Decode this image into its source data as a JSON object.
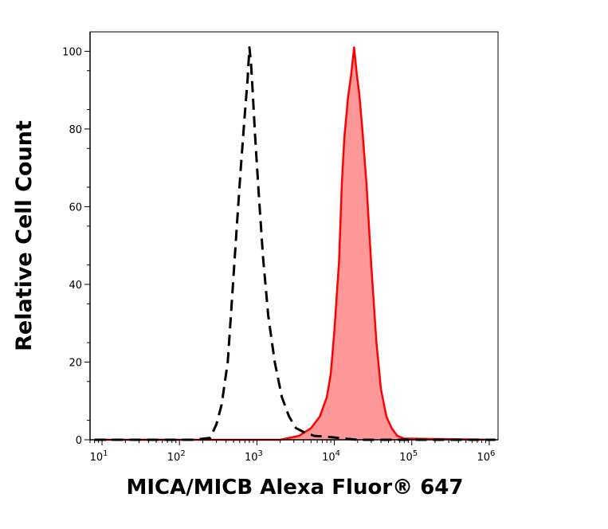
{
  "chart_data": {
    "type": "area",
    "xlabel": "MICA/MICB Alexa Fluor® 647",
    "ylabel": "Relative Cell Count",
    "x_scale": "log",
    "xlim": [
      7,
      1300000
    ],
    "ylim": [
      0,
      105
    ],
    "x_ticks": [
      {
        "base": "10",
        "exp": "1",
        "value": 10
      },
      {
        "base": "10",
        "exp": "2",
        "value": 100
      },
      {
        "base": "10",
        "exp": "3",
        "value": 1000
      },
      {
        "base": "10",
        "exp": "4",
        "value": 10000
      },
      {
        "base": "10",
        "exp": "5",
        "value": 100000
      },
      {
        "base": "10",
        "exp": "6",
        "value": 1000000
      }
    ],
    "y_ticks": [
      0,
      20,
      40,
      60,
      80,
      100
    ],
    "grid": false,
    "legend": "none",
    "series": [
      {
        "style": "dashed",
        "color": "#000000",
        "fill": "none",
        "points": [
          [
            8,
            0
          ],
          [
            150,
            0
          ],
          [
            250,
            0.5
          ],
          [
            300,
            4
          ],
          [
            350,
            9
          ],
          [
            420,
            20
          ],
          [
            480,
            37
          ],
          [
            550,
            55
          ],
          [
            620,
            70
          ],
          [
            700,
            84
          ],
          [
            760,
            93
          ],
          [
            800,
            101
          ],
          [
            840,
            97
          ],
          [
            880,
            90
          ],
          [
            950,
            78
          ],
          [
            1050,
            64
          ],
          [
            1200,
            47
          ],
          [
            1400,
            32
          ],
          [
            1700,
            20
          ],
          [
            2100,
            11
          ],
          [
            2600,
            6
          ],
          [
            3200,
            3
          ],
          [
            4000,
            2
          ],
          [
            5500,
            1
          ],
          [
            8000,
            0.8
          ],
          [
            12000,
            0.4
          ],
          [
            20000,
            0
          ],
          [
            1200000,
            0
          ]
        ]
      },
      {
        "style": "solid",
        "color": "#ff0000",
        "fill": "#ff9999",
        "points": [
          [
            8,
            0
          ],
          [
            2000,
            0
          ],
          [
            3500,
            1
          ],
          [
            5000,
            3
          ],
          [
            6500,
            6
          ],
          [
            8000,
            11
          ],
          [
            9000,
            17
          ],
          [
            10000,
            28
          ],
          [
            11500,
            46
          ],
          [
            12500,
            66
          ],
          [
            13500,
            78
          ],
          [
            15000,
            88
          ],
          [
            16500,
            94
          ],
          [
            18000,
            101
          ],
          [
            19500,
            94
          ],
          [
            21000,
            89
          ],
          [
            23000,
            80
          ],
          [
            26000,
            66
          ],
          [
            30000,
            45
          ],
          [
            35000,
            25
          ],
          [
            40000,
            13
          ],
          [
            47000,
            6
          ],
          [
            55000,
            3
          ],
          [
            65000,
            1
          ],
          [
            80000,
            0.3
          ],
          [
            1200000,
            0
          ]
        ]
      }
    ]
  }
}
